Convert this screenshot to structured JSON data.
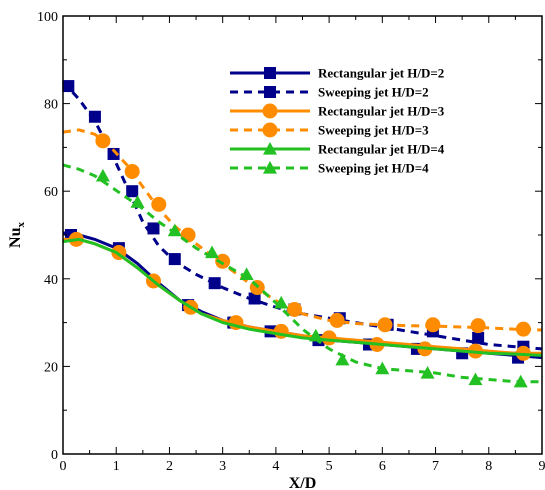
{
  "chart_data": {
    "type": "line",
    "title": "",
    "xlabel": "X/D",
    "ylabel_main": "Nu",
    "ylabel_sub": "x",
    "xlim": [
      0,
      9
    ],
    "ylim": [
      0,
      100
    ],
    "xticks": [
      0,
      1,
      2,
      3,
      4,
      5,
      6,
      7,
      8,
      9
    ],
    "yticks": [
      0,
      20,
      40,
      60,
      80,
      100
    ],
    "grid": false,
    "legend_position": "top-right",
    "series": [
      {
        "name": "Rectangular jet H/D=2",
        "color": "#00008B",
        "dash": "solid",
        "marker": "square",
        "curve_x": [
          0,
          0.3,
          0.6,
          1.0,
          1.4,
          1.8,
          2.2,
          2.6,
          3.0,
          3.5,
          4.0,
          4.5,
          5.0,
          5.5,
          6.0,
          6.5,
          7.0,
          7.5,
          8.0,
          8.5,
          9.0
        ],
        "curve_y": [
          50.5,
          50.0,
          49.0,
          47.0,
          43.5,
          39.0,
          35.0,
          32.5,
          30.5,
          29.0,
          28.0,
          27.0,
          26.0,
          25.5,
          25.0,
          24.5,
          24.0,
          23.5,
          23.0,
          22.5,
          22.0
        ],
        "marker_x": [
          0.15,
          1.05,
          2.35,
          3.2,
          3.9,
          4.8,
          5.75,
          6.65,
          7.5,
          8.55
        ],
        "marker_y": [
          50.0,
          47.0,
          34.0,
          30.0,
          28.0,
          26.0,
          25.0,
          24.0,
          23.0,
          22.0
        ]
      },
      {
        "name": "Sweeping jet H/D=2",
        "color": "#00008B",
        "dash": "dashed",
        "marker": "square",
        "curve_x": [
          0,
          0.3,
          0.6,
          0.9,
          1.2,
          1.5,
          1.8,
          2.1,
          2.5,
          3.0,
          3.5,
          4.0,
          4.5,
          5.0,
          5.5,
          6.0,
          6.5,
          7.0,
          7.5,
          8.0,
          8.5,
          9.0
        ],
        "curve_y": [
          85.0,
          81.0,
          76.0,
          69.0,
          61.0,
          53.0,
          47.5,
          44.0,
          41.0,
          38.0,
          35.5,
          33.5,
          32.0,
          31.0,
          30.0,
          29.0,
          28.0,
          27.0,
          26.0,
          25.0,
          24.5,
          24.0
        ],
        "marker_x": [
          0.1,
          0.6,
          0.95,
          1.3,
          1.7,
          2.1,
          2.85,
          3.6,
          4.35,
          5.2,
          6.1,
          6.95,
          7.8,
          8.65
        ],
        "marker_y": [
          84.0,
          77.0,
          68.5,
          60.0,
          51.5,
          44.5,
          39.0,
          35.5,
          33.0,
          31.0,
          29.5,
          28.0,
          26.5,
          24.5
        ]
      },
      {
        "name": "Rectangular jet H/D=3",
        "color": "#FF8C00",
        "dash": "solid",
        "marker": "circle",
        "curve_x": [
          0,
          0.3,
          0.6,
          1.0,
          1.4,
          1.8,
          2.2,
          2.6,
          3.0,
          3.5,
          4.0,
          4.5,
          5.0,
          5.5,
          6.0,
          6.5,
          7.0,
          7.5,
          8.0,
          8.5,
          9.0
        ],
        "curve_y": [
          49.0,
          49.0,
          48.0,
          46.0,
          42.5,
          38.5,
          35.0,
          32.0,
          30.5,
          29.0,
          28.0,
          27.0,
          26.5,
          26.0,
          25.5,
          25.0,
          24.5,
          24.0,
          23.5,
          23.0,
          23.0
        ],
        "marker_x": [
          0.25,
          1.05,
          1.7,
          2.4,
          3.25,
          4.1,
          5.0,
          5.9,
          6.8,
          7.75,
          8.65
        ],
        "marker_y": [
          49.0,
          46.0,
          39.5,
          33.5,
          30.0,
          28.0,
          26.5,
          25.0,
          24.0,
          23.5,
          23.0
        ]
      },
      {
        "name": "Sweeping jet H/D=3",
        "color": "#FF8C00",
        "dash": "dashed",
        "marker": "circle",
        "curve_x": [
          0,
          0.3,
          0.6,
          0.9,
          1.2,
          1.5,
          1.8,
          2.1,
          2.5,
          3.0,
          3.5,
          4.0,
          4.5,
          5.0,
          5.5,
          6.0,
          6.5,
          7.0,
          7.5,
          8.0,
          8.5,
          9.0
        ],
        "curve_y": [
          73.5,
          74.0,
          73.0,
          70.0,
          66.0,
          61.0,
          56.0,
          52.0,
          48.0,
          43.5,
          39.0,
          35.0,
          32.0,
          30.5,
          29.8,
          29.5,
          29.3,
          29.2,
          29.0,
          28.8,
          28.5,
          28.3
        ],
        "marker_x": [
          0.75,
          1.3,
          1.8,
          2.35,
          3.0,
          3.65,
          4.35,
          5.15,
          6.05,
          6.95,
          7.8,
          8.65
        ],
        "marker_y": [
          71.5,
          64.5,
          57.0,
          50.0,
          44.0,
          38.0,
          33.0,
          30.5,
          29.5,
          29.5,
          29.3,
          28.5
        ]
      },
      {
        "name": "Rectangular jet H/D=4",
        "color": "#22C022",
        "dash": "solid",
        "marker": "triangle",
        "curve_x": [
          0,
          0.3,
          0.6,
          1.0,
          1.4,
          1.8,
          2.2,
          2.6,
          3.0,
          3.5,
          4.0,
          4.5,
          5.0,
          5.5,
          6.0,
          6.5,
          7.0,
          7.5,
          8.0,
          8.5,
          9.0
        ],
        "curve_y": [
          48.5,
          49.0,
          48.0,
          46.0,
          42.5,
          38.5,
          35.0,
          32.0,
          30.0,
          28.5,
          27.5,
          26.5,
          26.0,
          25.5,
          25.0,
          24.5,
          24.0,
          23.5,
          23.0,
          22.8,
          22.5
        ],
        "marker_x": [],
        "marker_y": []
      },
      {
        "name": "Sweeping jet H/D=4",
        "color": "#22C022",
        "dash": "dashed",
        "marker": "triangle",
        "curve_x": [
          0,
          0.3,
          0.6,
          0.9,
          1.2,
          1.5,
          1.8,
          2.1,
          2.5,
          3.0,
          3.5,
          4.0,
          4.5,
          5.0,
          5.5,
          6.0,
          6.5,
          7.0,
          7.5,
          8.0,
          8.5,
          9.0
        ],
        "curve_y": [
          66.0,
          65.0,
          63.5,
          61.0,
          58.5,
          56.0,
          53.0,
          50.5,
          47.0,
          43.5,
          40.0,
          34.5,
          28.5,
          24.0,
          21.0,
          19.5,
          19.0,
          18.5,
          17.5,
          17.0,
          16.5,
          16.5
        ],
        "marker_x": [
          0.75,
          1.4,
          2.1,
          2.8,
          3.45,
          4.1,
          4.75,
          5.25,
          6.0,
          6.85,
          7.75,
          8.6
        ],
        "marker_y": [
          63.5,
          57.5,
          51.0,
          46.0,
          41.0,
          34.5,
          27.0,
          21.5,
          19.5,
          18.5,
          17.0,
          16.5
        ]
      }
    ]
  }
}
